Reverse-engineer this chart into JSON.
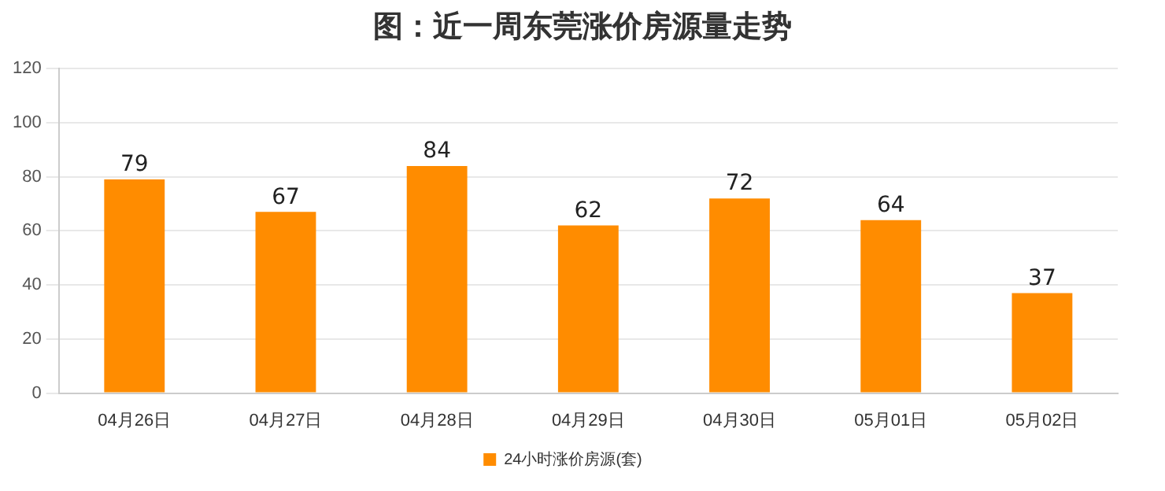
{
  "chart_data": {
    "type": "bar",
    "title": "图：近一周东莞涨价房源量走势",
    "categories": [
      "04月26日",
      "04月27日",
      "04月28日",
      "04月29日",
      "04月30日",
      "05月01日",
      "05月02日"
    ],
    "series": [
      {
        "name": "24小时涨价房源(套)",
        "color": "#ff8c00",
        "values": [
          79,
          67,
          84,
          62,
          72,
          64,
          37
        ]
      }
    ],
    "ylim": [
      0,
      120
    ],
    "yticks": [
      0,
      20,
      40,
      60,
      80,
      100,
      120
    ],
    "grid": "y",
    "legend": "bottom",
    "data_labels": true
  }
}
